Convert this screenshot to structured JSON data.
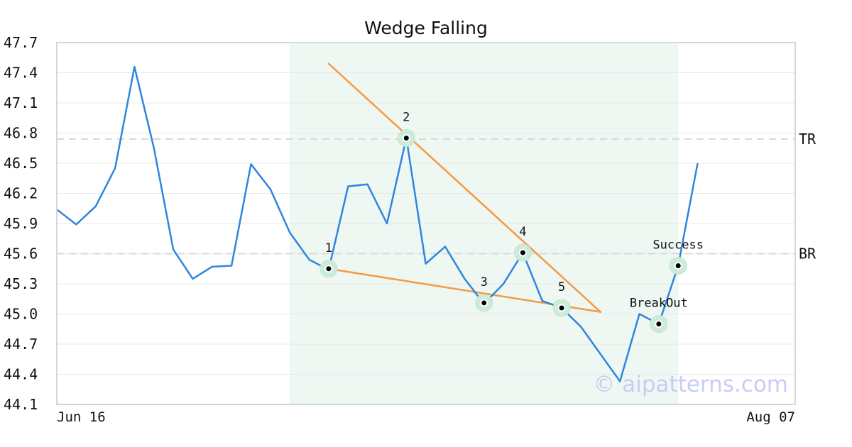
{
  "chart_data": {
    "type": "line",
    "title": "Wedge Falling",
    "xlabel": "",
    "ylabel": "",
    "grid": true,
    "ylim": [
      44.1,
      47.7
    ],
    "y_ticks": [
      "47.7",
      "47.4",
      "47.1",
      "46.8",
      "46.5",
      "46.2",
      "45.9",
      "45.6",
      "45.3",
      "45.0",
      "44.7",
      "44.4",
      "44.1"
    ],
    "x_tick_labels": [
      {
        "index": 0,
        "label": "Jun 16"
      },
      {
        "index": 38,
        "label": "Aug 07"
      }
    ],
    "series": [
      {
        "color": "#2e86de",
        "values": [
          46.04,
          45.89,
          46.07,
          46.45,
          47.46,
          46.65,
          45.64,
          45.35,
          45.47,
          45.48,
          46.49,
          46.24,
          45.81,
          45.54,
          45.44,
          46.27,
          46.29,
          45.9,
          46.75,
          45.5,
          45.67,
          45.35,
          45.1,
          45.3,
          45.61,
          45.13,
          45.06,
          44.87,
          44.6,
          44.33,
          45.0,
          44.9,
          45.48,
          46.5
        ]
      }
    ],
    "highlight_range": {
      "start_index": 12,
      "end_index": 32,
      "color": "#eef7f2"
    },
    "reference_lines": [
      {
        "label": "TR",
        "value": 46.74
      },
      {
        "label": "BR",
        "value": 45.6
      }
    ],
    "trend_lines": [
      {
        "color": "#f59a42",
        "from": {
          "index": 14,
          "value": 47.49
        },
        "to": {
          "index": 28,
          "value": 45.02
        }
      },
      {
        "color": "#f59a42",
        "from": {
          "index": 14,
          "value": 45.45
        },
        "to": {
          "index": 28,
          "value": 45.02
        }
      }
    ],
    "pattern_points": [
      {
        "label": "1",
        "index": 14,
        "value": 45.45
      },
      {
        "label": "2",
        "index": 18,
        "value": 46.75
      },
      {
        "label": "3",
        "index": 22,
        "value": 45.11
      },
      {
        "label": "4",
        "index": 24,
        "value": 45.61
      },
      {
        "label": "5",
        "index": 26,
        "value": 45.06
      },
      {
        "label": "BreakOut",
        "index": 31,
        "value": 44.9
      },
      {
        "label": "Success",
        "index": 32,
        "value": 45.48
      }
    ],
    "watermark": "© aipatterns.com"
  }
}
